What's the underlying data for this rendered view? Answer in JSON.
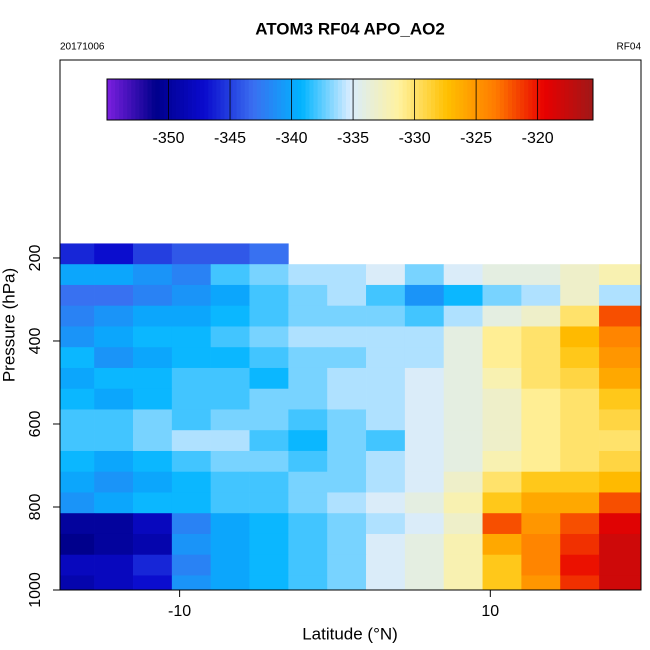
{
  "chart_data": {
    "type": "heatmap",
    "title": "ATOM3 RF04 APO_AO2",
    "subtitle_left": "20171006",
    "subtitle_right": "RF04",
    "x_label": "Latitude (°N)",
    "y_label": "Pressure (hPa)",
    "xlim": [
      -17.7,
      19.7
    ],
    "xticks": [
      -10,
      10
    ],
    "ylim": [
      1000,
      -277
    ],
    "yticks": [
      200,
      400,
      600,
      800,
      1000
    ],
    "xbins": [
      -18,
      -15.5,
      -13,
      -10.5,
      -8,
      -5.5,
      -3,
      -0.5,
      2,
      4.5,
      7,
      9.5,
      12,
      14.5,
      17,
      20
    ],
    "ybins": [
      165,
      215,
      265,
      315,
      365,
      415,
      465,
      515,
      565,
      615,
      665,
      715,
      765,
      815,
      865,
      915,
      965,
      1000
    ],
    "values": [
      [
        -346,
        -347,
        -345,
        -344,
        -344,
        -343,
        null,
        null,
        null,
        null,
        null,
        null,
        null,
        null,
        null
      ],
      [
        -340,
        -340,
        -341,
        -342,
        -338,
        -337,
        -336,
        -336,
        -335,
        -337,
        -335,
        -334,
        -334,
        -333,
        -332
      ],
      [
        -343,
        -343,
        -342,
        -341,
        -340,
        -338,
        -337,
        -336,
        -338,
        -341,
        -339,
        -337,
        -336,
        -333,
        -336
      ],
      [
        -342,
        -341,
        -340,
        -340,
        -339,
        -338,
        -337,
        -337,
        -337,
        -338,
        -336,
        -334,
        -333,
        -330,
        -322
      ],
      [
        -341,
        -340,
        -339,
        -339,
        -338,
        -337,
        -336,
        -336,
        -336,
        -336,
        -334,
        -331,
        -330,
        -327,
        -324
      ],
      [
        -339,
        -341,
        -340,
        -339,
        -339,
        -338,
        -337,
        -337,
        -336,
        -336,
        -334,
        -331,
        -330,
        -328,
        -325
      ],
      [
        -340,
        -339,
        -339,
        -338,
        -338,
        -339,
        -337,
        -336,
        -336,
        -335,
        -334,
        -332,
        -330,
        -329,
        -326
      ],
      [
        -339,
        -340,
        -339,
        -338,
        -338,
        -337,
        -337,
        -336,
        -336,
        -335,
        -334,
        -333,
        -331,
        -330,
        -328
      ],
      [
        -338,
        -338,
        -337,
        -338,
        -337,
        -337,
        -338,
        -337,
        -336,
        -335,
        -334,
        -333,
        -331,
        -330,
        -329
      ],
      [
        -338,
        -338,
        -337,
        -336,
        -336,
        -338,
        -339,
        -337,
        -338,
        -335,
        -334,
        -333,
        -331,
        -330,
        -330
      ],
      [
        -339,
        -340,
        -339,
        -338,
        -337,
        -337,
        -338,
        -337,
        -336,
        -335,
        -334,
        -332,
        -331,
        -330,
        -329
      ],
      [
        -340,
        -341,
        -340,
        -339,
        -338,
        -338,
        -337,
        -337,
        -336,
        -335,
        -333,
        -330,
        -328,
        -328,
        -327
      ],
      [
        -341,
        -340,
        -339,
        -339,
        -338,
        -338,
        -337,
        -336,
        -335,
        -334,
        -332,
        -328,
        -326,
        -326,
        -322
      ],
      [
        -350,
        -350,
        -348,
        -342,
        -340,
        -339,
        -338,
        -337,
        -336,
        -335,
        -333,
        -322,
        -325,
        -322,
        -319
      ],
      [
        -351,
        -350,
        -349,
        -341,
        -340,
        -339,
        -338,
        -337,
        -335,
        -334,
        -332,
        -326,
        -324,
        -321,
        -318
      ],
      [
        -348,
        -348,
        -346,
        -342,
        -340,
        -339,
        -338,
        -337,
        -335,
        -334,
        -332,
        -328,
        -324,
        -320,
        -318
      ],
      [
        -349,
        -348,
        -347,
        -341,
        -340,
        -339,
        -338,
        -337,
        -335,
        -334,
        -332,
        -328,
        -325,
        -321,
        -318
      ]
    ],
    "colorbar_lim": [
      -355,
      -315.5
    ],
    "colorbar_ticks": [
      -350,
      -345,
      -340,
      -335,
      -330,
      -325,
      -320
    ],
    "colors": [
      "#7b1fe0",
      "#00008b",
      "#0a0acd",
      "#3a6ef0",
      "#00b4ff",
      "#d8ecff",
      "#fff2a0",
      "#ffc000",
      "#ff7a00",
      "#e80000",
      "#a01818"
    ]
  }
}
